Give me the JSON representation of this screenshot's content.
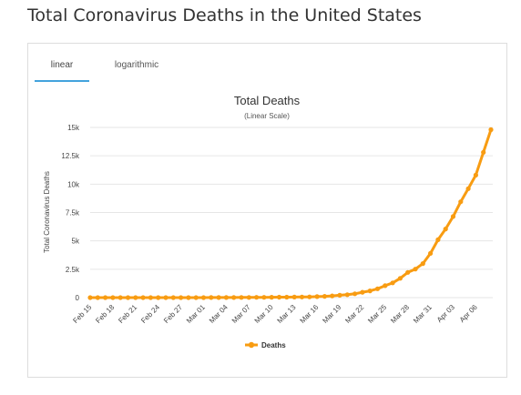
{
  "page": {
    "title": "Total Coronavirus Deaths in the United States"
  },
  "tabs": [
    {
      "label": "linear",
      "active": true
    },
    {
      "label": "logarithmic",
      "active": false
    }
  ],
  "colors": {
    "series": "#f89c12",
    "tab_active": "#43a3dd",
    "grid": "#e6e6e6"
  },
  "chart_data": {
    "type": "line",
    "title": "Total Deaths",
    "subtitle": "(Linear Scale)",
    "ylabel": "Total Coronavirus Deaths",
    "xlabel": "",
    "ylim": [
      0,
      15000
    ],
    "y_ticks": [
      0,
      2500,
      5000,
      7500,
      10000,
      12500,
      15000
    ],
    "y_tick_labels": [
      "0",
      "2.5k",
      "5k",
      "7.5k",
      "10k",
      "12.5k",
      "15k"
    ],
    "x_tick_labels": [
      "Feb 15",
      "Feb 18",
      "Feb 21",
      "Feb 24",
      "Feb 27",
      "Mar 01",
      "Mar 04",
      "Mar 07",
      "Mar 10",
      "Mar 13",
      "Mar 16",
      "Mar 19",
      "Mar 22",
      "Mar 25",
      "Mar 28",
      "Mar 31",
      "Apr 03",
      "Apr 06"
    ],
    "grid": true,
    "legend": "bottom-center",
    "series": [
      {
        "name": "Deaths",
        "x": [
          "Feb 15",
          "Feb 16",
          "Feb 17",
          "Feb 18",
          "Feb 19",
          "Feb 20",
          "Feb 21",
          "Feb 22",
          "Feb 23",
          "Feb 24",
          "Feb 25",
          "Feb 26",
          "Feb 27",
          "Feb 28",
          "Feb 29",
          "Mar 01",
          "Mar 02",
          "Mar 03",
          "Mar 04",
          "Mar 05",
          "Mar 06",
          "Mar 07",
          "Mar 08",
          "Mar 09",
          "Mar 10",
          "Mar 11",
          "Mar 12",
          "Mar 13",
          "Mar 14",
          "Mar 15",
          "Mar 16",
          "Mar 17",
          "Mar 18",
          "Mar 19",
          "Mar 20",
          "Mar 21",
          "Mar 22",
          "Mar 23",
          "Mar 24",
          "Mar 25",
          "Mar 26",
          "Mar 27",
          "Mar 28",
          "Mar 29",
          "Mar 30",
          "Mar 31",
          "Apr 01",
          "Apr 02",
          "Apr 03",
          "Apr 04",
          "Apr 05",
          "Apr 06",
          "Apr 07",
          "Apr 08"
        ],
        "values": [
          0,
          0,
          0,
          0,
          0,
          0,
          0,
          0,
          0,
          0,
          0,
          0,
          0,
          0,
          1,
          1,
          6,
          9,
          11,
          12,
          15,
          19,
          22,
          26,
          30,
          38,
          41,
          49,
          57,
          68,
          86,
          109,
          150,
          207,
          260,
          340,
          471,
          590,
          780,
          1050,
          1300,
          1700,
          2220,
          2510,
          3000,
          3900,
          5100,
          6050,
          7150,
          8450,
          9600,
          10800,
          12800,
          14800
        ]
      }
    ]
  },
  "legend_items": [
    {
      "label": "Deaths"
    }
  ]
}
